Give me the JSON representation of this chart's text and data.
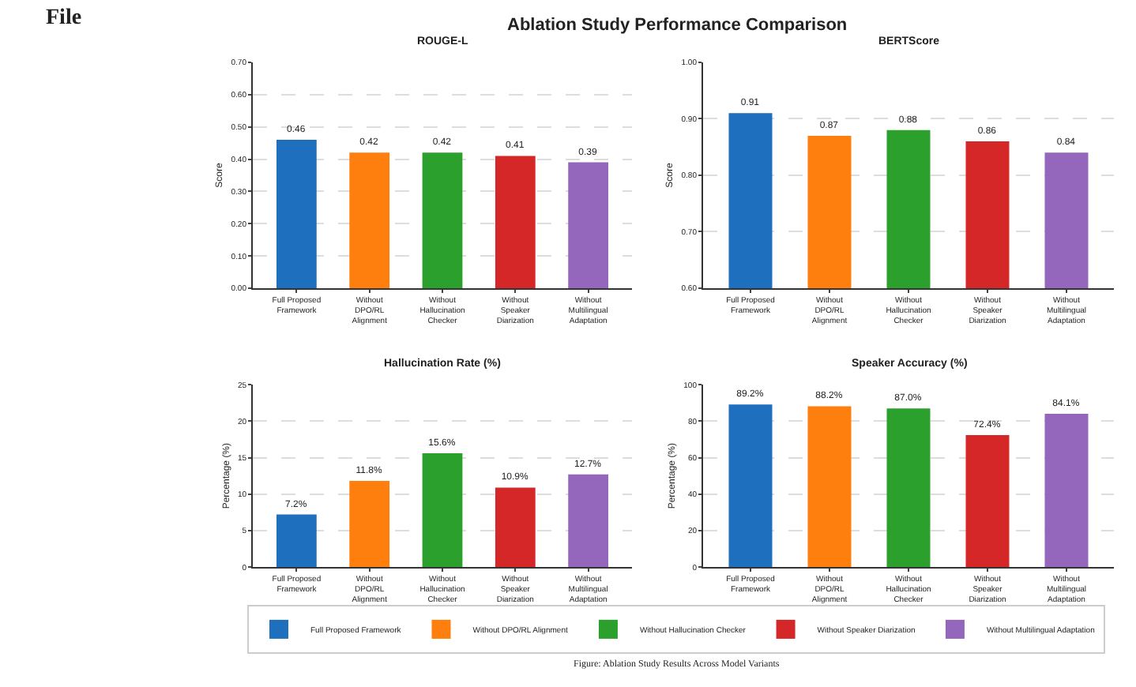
{
  "chart_data": [
    {
      "type": "bar",
      "title": "ROUGE-L",
      "ylabel": "Score",
      "annotations": [
        "File",
        "Ablation Study Performance Comparison",
        "Figure: Ablation Study Results Across Model Variants"
      ],
      "categories": [
        "Full Proposed Framework",
        "Without DPO/RL Alignment",
        "Without Hallucination Checker",
        "Without Speaker Diarization",
        "Without Multilingual Adaptation"
      ],
      "series": [
        {
          "name": "Full Proposed Framework",
          "color": "#1f6fbf",
          "values": [
            0.46,
            null,
            null,
            null,
            null
          ],
          "value_labels": [
            "0.46",
            null,
            null,
            null,
            null
          ]
        },
        {
          "name": "Without DPO/RL Alignment",
          "color": "#ff7f0e",
          "values": [
            null,
            0.42,
            null,
            null,
            null
          ],
          "value_labels": [
            null,
            "0.42",
            null,
            null,
            null
          ]
        },
        {
          "name": "Without Hallucination Checker",
          "color": "#2ca02c",
          "values": [
            null,
            null,
            0.42,
            null,
            null
          ],
          "value_labels": [
            null,
            null,
            "0.42",
            null,
            null
          ]
        },
        {
          "name": "Without Speaker Diarization",
          "color": "#d62728",
          "values": [
            null,
            null,
            null,
            0.41,
            null
          ],
          "value_labels": [
            null,
            null,
            null,
            "0.41",
            null
          ]
        },
        {
          "name": "Without Multilingual Adaptation",
          "color": "#9467bd",
          "values": [
            null,
            null,
            null,
            null,
            0.39
          ],
          "value_labels": [
            null,
            null,
            null,
            null,
            "0.39"
          ]
        }
      ],
      "ylim": [
        0,
        0.7
      ],
      "yticks": [
        {
          "value": 0,
          "label": "0.00"
        },
        {
          "value": 0.1,
          "label": "0.10"
        },
        {
          "value": 0.2,
          "label": "0.20"
        },
        {
          "value": 0.3,
          "label": "0.30"
        },
        {
          "value": 0.4,
          "label": "0.40"
        },
        {
          "value": 0.5,
          "label": "0.50"
        },
        {
          "value": 0.6,
          "label": "0.60"
        },
        {
          "value": 0.7,
          "label": "0.70"
        }
      ],
      "grid": "y",
      "legend": "bottom"
    },
    {
      "type": "bar",
      "title": "BERTScore",
      "ylabel": "Score",
      "categories": [
        "Full Proposed Framework",
        "Without DPO/RL Alignment",
        "Without Hallucination Checker",
        "Without Speaker Diarization",
        "Without Multilingual Adaptation"
      ],
      "series": [
        {
          "color": "#1f6fbf",
          "values": [
            0.91,
            null,
            null,
            null,
            null
          ],
          "value_labels": [
            "0.91",
            null,
            null,
            null,
            null
          ]
        },
        {
          "color": "#ff7f0e",
          "values": [
            null,
            0.87,
            null,
            null,
            null
          ],
          "value_labels": [
            null,
            "0.87",
            null,
            null,
            null
          ]
        },
        {
          "color": "#2ca02c",
          "values": [
            null,
            null,
            0.88,
            null,
            null
          ],
          "value_labels": [
            null,
            null,
            "0.88",
            null,
            null
          ]
        },
        {
          "color": "#d62728",
          "values": [
            null,
            null,
            null,
            0.86,
            null
          ],
          "value_labels": [
            null,
            null,
            null,
            "0.86",
            null
          ]
        },
        {
          "color": "#9467bd",
          "values": [
            null,
            null,
            null,
            null,
            0.84
          ],
          "value_labels": [
            null,
            null,
            null,
            null,
            "0.84"
          ]
        }
      ],
      "ylim": [
        0.6,
        1.0
      ],
      "yticks": [
        {
          "value": 0.6,
          "label": "0.60"
        },
        {
          "value": 0.7,
          "label": "0.70"
        },
        {
          "value": 0.8,
          "label": "0.80"
        },
        {
          "value": 0.9,
          "label": "0.90"
        },
        {
          "value": 1.0,
          "label": "1.00"
        }
      ],
      "grid": "y"
    },
    {
      "type": "bar",
      "title": "Hallucination Rate (%)",
      "ylabel": "Percentage (%)",
      "categories": [
        "Full Proposed Framework",
        "Without DPO/RL Alignment",
        "Without Hallucination Checker",
        "Without Speaker Diarization",
        "Without Multilingual Adaptation"
      ],
      "series": [
        {
          "color": "#1f6fbf",
          "values": [
            7.2,
            null,
            null,
            null,
            null
          ],
          "value_labels": [
            "7.2%",
            null,
            null,
            null,
            null
          ]
        },
        {
          "color": "#ff7f0e",
          "values": [
            null,
            11.8,
            null,
            null,
            null
          ],
          "value_labels": [
            null,
            "11.8%",
            null,
            null,
            null
          ]
        },
        {
          "color": "#2ca02c",
          "values": [
            null,
            null,
            15.6,
            null,
            null
          ],
          "value_labels": [
            null,
            null,
            "15.6%",
            null,
            null
          ]
        },
        {
          "color": "#d62728",
          "values": [
            null,
            null,
            null,
            10.9,
            null
          ],
          "value_labels": [
            null,
            null,
            null,
            "10.9%",
            null
          ]
        },
        {
          "color": "#9467bd",
          "values": [
            null,
            null,
            null,
            null,
            12.7
          ],
          "value_labels": [
            null,
            null,
            null,
            null,
            "12.7%"
          ]
        }
      ],
      "ylim": [
        0,
        25
      ],
      "yticks": [
        0,
        5,
        10,
        15,
        20,
        25
      ],
      "grid": "y"
    },
    {
      "type": "bar",
      "title": "Speaker Accuracy (%)",
      "ylabel": "Percentage (%)",
      "categories": [
        "Full Proposed Framework",
        "Without DPO/RL Alignment",
        "Without Hallucination Checker",
        "Without Speaker Diarization",
        "Without Multilingual Adaptation"
      ],
      "series": [
        {
          "color": "#1f6fbf",
          "values": [
            89.2,
            null,
            null,
            null,
            null
          ],
          "value_labels": [
            "89.2%",
            null,
            null,
            null,
            null
          ]
        },
        {
          "color": "#ff7f0e",
          "values": [
            null,
            88.2,
            null,
            null,
            null
          ],
          "value_labels": [
            null,
            "88.2%",
            null,
            null,
            null
          ]
        },
        {
          "color": "#2ca02c",
          "values": [
            null,
            null,
            87.0,
            null,
            null
          ],
          "value_labels": [
            null,
            null,
            "87.0%",
            null,
            null
          ]
        },
        {
          "color": "#d62728",
          "values": [
            null,
            null,
            null,
            72.4,
            null
          ],
          "value_labels": [
            null,
            null,
            null,
            "72.4%",
            null
          ]
        },
        {
          "color": "#9467bd",
          "values": [
            null,
            null,
            null,
            null,
            84.1
          ],
          "value_labels": [
            null,
            null,
            null,
            null,
            "84.1%"
          ]
        }
      ],
      "ylim": [
        0,
        100
      ],
      "yticks": [
        0,
        20,
        40,
        60,
        80,
        100
      ],
      "grid": "y"
    }
  ]
}
